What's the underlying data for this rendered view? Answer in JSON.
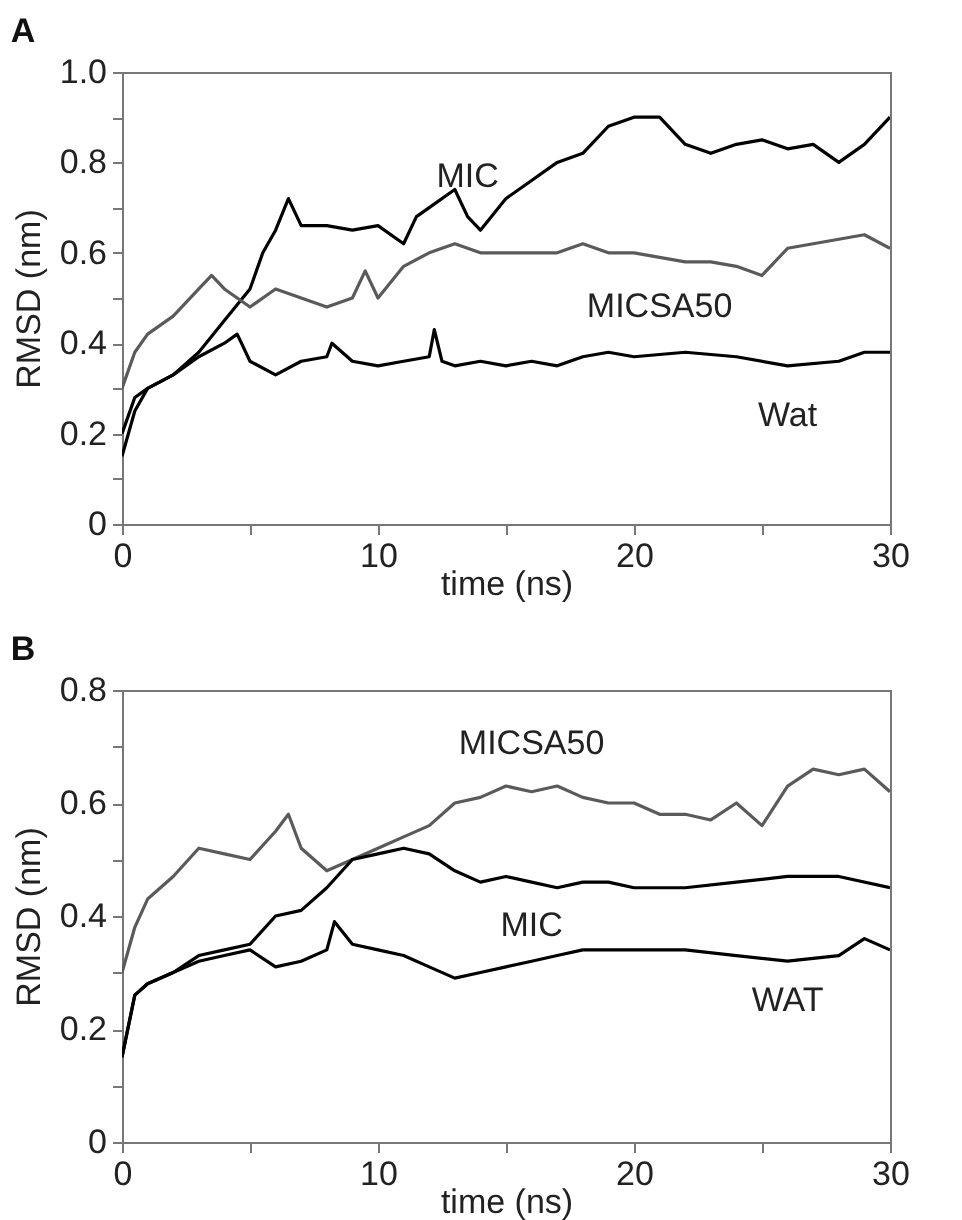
{
  "chart_data": [
    {
      "type": "line",
      "title": "A",
      "xlabel": "time (ns)",
      "ylabel": "RMSD (nm)",
      "xlim": [
        0,
        30
      ],
      "ylim": [
        0,
        1
      ],
      "xticks": [
        0,
        {
          "value": 5,
          "label": null
        },
        10,
        {
          "value": 15,
          "label": null
        },
        20,
        {
          "value": 25,
          "label": null
        },
        30
      ],
      "yticks": [
        0,
        {
          "value": 0.1,
          "label": null
        },
        0.2,
        {
          "value": 0.3,
          "label": null
        },
        0.4,
        {
          "value": 0.5,
          "label": null
        },
        0.6,
        {
          "value": 0.7,
          "label": null
        },
        0.8,
        {
          "value": 0.9,
          "label": null
        },
        {
          "value": 1,
          "label": "1.0"
        }
      ],
      "grid": false,
      "series": [
        {
          "name": "MIC",
          "color": "#000000",
          "x": [
            0,
            0.5,
            1,
            2,
            3,
            4,
            5,
            5.5,
            6,
            6.5,
            7,
            8,
            9,
            10,
            11,
            11.5,
            12,
            13,
            13.5,
            14,
            15,
            16,
            17,
            18,
            19,
            20,
            21,
            22,
            23,
            24,
            25,
            26,
            27,
            28,
            29,
            30
          ],
          "values": [
            0.2,
            0.28,
            0.3,
            0.33,
            0.38,
            0.45,
            0.52,
            0.6,
            0.65,
            0.72,
            0.66,
            0.66,
            0.65,
            0.66,
            0.62,
            0.68,
            0.7,
            0.74,
            0.68,
            0.65,
            0.72,
            0.76,
            0.8,
            0.82,
            0.88,
            0.9,
            0.9,
            0.84,
            0.82,
            0.84,
            0.85,
            0.83,
            0.84,
            0.8,
            0.84,
            0.9
          ]
        },
        {
          "name": "MICSA50",
          "color": "#5a5a5a",
          "x": [
            0,
            0.5,
            1,
            2,
            3,
            3.5,
            4,
            5,
            6,
            7,
            8,
            9,
            9.5,
            10,
            11,
            12,
            13,
            14,
            15,
            16,
            17,
            18,
            19,
            20,
            21,
            22,
            23,
            24,
            25,
            26,
            27,
            28,
            29,
            30
          ],
          "values": [
            0.3,
            0.38,
            0.42,
            0.46,
            0.52,
            0.55,
            0.52,
            0.48,
            0.52,
            0.5,
            0.48,
            0.5,
            0.56,
            0.5,
            0.57,
            0.6,
            0.62,
            0.6,
            0.6,
            0.6,
            0.6,
            0.62,
            0.6,
            0.6,
            0.59,
            0.58,
            0.58,
            0.57,
            0.55,
            0.61,
            0.62,
            0.63,
            0.64,
            0.61
          ]
        },
        {
          "name": "Wat",
          "color": "#000000",
          "x": [
            0,
            0.5,
            1,
            2,
            3,
            4,
            4.5,
            5,
            6,
            7,
            8,
            8.2,
            9,
            10,
            11,
            12,
            12.2,
            12.5,
            13,
            14,
            15,
            16,
            17,
            18,
            19,
            20,
            22,
            24,
            26,
            28,
            29,
            30
          ],
          "values": [
            0.15,
            0.25,
            0.3,
            0.33,
            0.37,
            0.4,
            0.42,
            0.36,
            0.33,
            0.36,
            0.37,
            0.4,
            0.36,
            0.35,
            0.36,
            0.37,
            0.43,
            0.36,
            0.35,
            0.36,
            0.35,
            0.36,
            0.35,
            0.37,
            0.38,
            0.37,
            0.38,
            0.37,
            0.35,
            0.36,
            0.38,
            0.38
          ]
        }
      ]
    },
    {
      "type": "line",
      "title": "B",
      "xlabel": "time (ns)",
      "ylabel": "RMSD (nm)",
      "xlim": [
        0,
        30
      ],
      "ylim": [
        0,
        0.8
      ],
      "xticks": [
        0,
        {
          "value": 5,
          "label": null
        },
        10,
        {
          "value": 15,
          "label": null
        },
        20,
        {
          "value": 25,
          "label": null
        },
        30
      ],
      "yticks": [
        0,
        {
          "value": 0.1,
          "label": null
        },
        0.2,
        {
          "value": 0.3,
          "label": null
        },
        0.4,
        {
          "value": 0.5,
          "label": null
        },
        0.6,
        {
          "value": 0.7,
          "label": null
        },
        0.8
      ],
      "grid": false,
      "series": [
        {
          "name": "MICSA50",
          "color": "#5a5a5a",
          "x": [
            0,
            0.5,
            1,
            2,
            3,
            4,
            5,
            6,
            6.5,
            7,
            8,
            9,
            10,
            11,
            12,
            13,
            14,
            15,
            16,
            17,
            18,
            19,
            20,
            21,
            22,
            23,
            24,
            25,
            26,
            27,
            28,
            29,
            30
          ],
          "values": [
            0.3,
            0.38,
            0.43,
            0.47,
            0.52,
            0.51,
            0.5,
            0.55,
            0.58,
            0.52,
            0.48,
            0.5,
            0.52,
            0.54,
            0.56,
            0.6,
            0.61,
            0.63,
            0.62,
            0.63,
            0.61,
            0.6,
            0.6,
            0.58,
            0.58,
            0.57,
            0.6,
            0.56,
            0.63,
            0.66,
            0.65,
            0.66,
            0.62
          ]
        },
        {
          "name": "MIC",
          "color": "#000000",
          "x": [
            0,
            0.5,
            1,
            2,
            3,
            4,
            5,
            6,
            7,
            8,
            9,
            10,
            11,
            12,
            13,
            14,
            15,
            16,
            17,
            18,
            19,
            20,
            22,
            24,
            26,
            28,
            30
          ],
          "values": [
            0.15,
            0.26,
            0.28,
            0.3,
            0.33,
            0.34,
            0.35,
            0.4,
            0.41,
            0.45,
            0.5,
            0.51,
            0.52,
            0.51,
            0.48,
            0.46,
            0.47,
            0.46,
            0.45,
            0.46,
            0.46,
            0.45,
            0.45,
            0.46,
            0.47,
            0.47,
            0.45
          ]
        },
        {
          "name": "WAT",
          "color": "#000000",
          "x": [
            0,
            0.5,
            1,
            2,
            3,
            4,
            5,
            6,
            7,
            8,
            8.3,
            9,
            10,
            11,
            12,
            13,
            14,
            15,
            16,
            17,
            18,
            19,
            20,
            22,
            24,
            26,
            28,
            29,
            30
          ],
          "values": [
            0.15,
            0.26,
            0.28,
            0.3,
            0.32,
            0.33,
            0.34,
            0.31,
            0.32,
            0.34,
            0.39,
            0.35,
            0.34,
            0.33,
            0.31,
            0.29,
            0.3,
            0.31,
            0.32,
            0.33,
            0.34,
            0.34,
            0.34,
            0.34,
            0.33,
            0.32,
            0.33,
            0.36,
            0.34
          ]
        }
      ]
    }
  ]
}
